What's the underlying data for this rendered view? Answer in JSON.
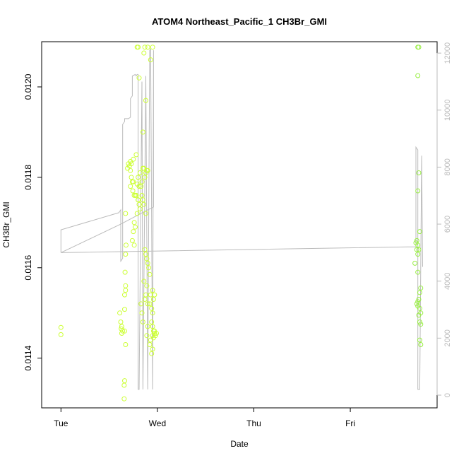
{
  "chart_data": {
    "type": "scatter",
    "title": "ATOM4 Northeast_Pacific_1 CH3Br_GMI",
    "xlabel": "Date",
    "ylabel": "CH3Br_GMI",
    "x_ticks": [
      {
        "label": "Tue",
        "value": 0
      },
      {
        "label": "Wed",
        "value": 1
      },
      {
        "label": "Thu",
        "value": 2
      },
      {
        "label": "Fri",
        "value": 3
      }
    ],
    "xlim": [
      -0.2,
      3.9
    ],
    "ylim": [
      0.01129,
      0.0121
    ],
    "y_ticks": [
      {
        "label": "0.0114",
        "value": 0.0114
      },
      {
        "label": "0.0116",
        "value": 0.0116
      },
      {
        "label": "0.0118",
        "value": 0.0118
      },
      {
        "label": "0.0120",
        "value": 0.012
      }
    ],
    "y2lim": [
      0,
      12400
    ],
    "y2_ticks": [
      {
        "label": "0",
        "value": 0
      },
      {
        "label": "2000",
        "value": 2000
      },
      {
        "label": "4000",
        "value": 4000
      },
      {
        "label": "6000",
        "value": 6000
      },
      {
        "label": "8000",
        "value": 8000
      },
      {
        "label": "10000",
        "value": 10000
      },
      {
        "label": "12000",
        "value": 12000
      }
    ],
    "grid": false,
    "colors": {
      "points": "#ccff33",
      "points_late": "#99ee44",
      "line": "#bbbbbb",
      "axis": "#000000",
      "axis_right": "#bbbbbb"
    },
    "series": [
      {
        "kind": "points",
        "points": [
          [
            0.0,
            0.011468
          ],
          [
            0.0,
            0.011452
          ],
          [
            0.61,
            0.0115
          ],
          [
            0.62,
            0.01148
          ],
          [
            0.63,
            0.01147
          ],
          [
            0.625,
            0.011465
          ],
          [
            0.64,
            0.01146
          ],
          [
            0.63,
            0.011455
          ],
          [
            0.66,
            0.01146
          ],
          [
            0.67,
            0.01143
          ],
          [
            0.66,
            0.011508
          ],
          [
            0.66,
            0.01154
          ],
          [
            0.67,
            0.01155
          ],
          [
            0.67,
            0.01156
          ],
          [
            0.665,
            0.01159
          ],
          [
            0.67,
            0.01163
          ],
          [
            0.675,
            0.01165
          ],
          [
            0.67,
            0.01172
          ],
          [
            0.66,
            0.01135
          ],
          [
            0.655,
            0.01134
          ],
          [
            0.655,
            0.01131
          ],
          [
            0.69,
            0.01182
          ],
          [
            0.7,
            0.01183
          ],
          [
            0.71,
            0.011825
          ],
          [
            0.72,
            0.011815
          ],
          [
            0.73,
            0.0118
          ],
          [
            0.74,
            0.01179
          ],
          [
            0.75,
            0.01179
          ],
          [
            0.72,
            0.01178
          ],
          [
            0.745,
            0.01177
          ],
          [
            0.76,
            0.01176
          ],
          [
            0.77,
            0.01176
          ],
          [
            0.78,
            0.01176
          ],
          [
            0.8,
            0.01175
          ],
          [
            0.81,
            0.01174
          ],
          [
            0.82,
            0.01173
          ],
          [
            0.79,
            0.01172
          ],
          [
            0.76,
            0.0117
          ],
          [
            0.77,
            0.01169
          ],
          [
            0.74,
            0.01166
          ],
          [
            0.76,
            0.01165
          ],
          [
            0.75,
            0.01168
          ],
          [
            0.8,
            0.01175
          ],
          [
            0.85,
            0.01175
          ],
          [
            0.86,
            0.01174
          ],
          [
            0.88,
            0.01172
          ],
          [
            0.83,
            0.01178
          ],
          [
            0.84,
            0.01179
          ],
          [
            0.87,
            0.0118
          ],
          [
            0.88,
            0.01181
          ],
          [
            0.89,
            0.011815
          ],
          [
            0.85,
            0.01182
          ],
          [
            0.86,
            0.01182
          ],
          [
            0.9,
            0.011815
          ],
          [
            0.75,
            0.01184
          ],
          [
            0.78,
            0.01185
          ],
          [
            0.72,
            0.011835
          ],
          [
            0.73,
            0.01183
          ],
          [
            0.8,
            0.0118
          ],
          [
            0.82,
            0.01181
          ],
          [
            0.84,
            0.01176
          ],
          [
            0.81,
            0.01178
          ],
          [
            0.79,
            0.011785
          ],
          [
            0.87,
            0.01164
          ],
          [
            0.88,
            0.01163
          ],
          [
            0.89,
            0.01162
          ],
          [
            0.9,
            0.01161
          ],
          [
            0.91,
            0.0116
          ],
          [
            0.92,
            0.011585
          ],
          [
            0.86,
            0.01157
          ],
          [
            0.89,
            0.01156
          ],
          [
            0.88,
            0.01154
          ],
          [
            0.87,
            0.01153
          ],
          [
            0.9,
            0.01152
          ],
          [
            0.93,
            0.01154
          ],
          [
            0.92,
            0.01152
          ],
          [
            0.94,
            0.01151
          ],
          [
            0.95,
            0.0115
          ],
          [
            0.94,
            0.01148
          ],
          [
            0.95,
            0.01147
          ],
          [
            0.96,
            0.01146
          ],
          [
            0.97,
            0.011455
          ],
          [
            0.95,
            0.01145
          ],
          [
            0.96,
            0.011445
          ],
          [
            0.98,
            0.01145
          ],
          [
            0.97,
            0.01146
          ],
          [
            0.99,
            0.011455
          ],
          [
            0.93,
            0.01144
          ],
          [
            0.92,
            0.01143
          ],
          [
            0.95,
            0.01142
          ],
          [
            0.94,
            0.01141
          ],
          [
            0.9,
            0.01147
          ],
          [
            0.89,
            0.01145
          ],
          [
            0.85,
            0.01148
          ],
          [
            0.84,
            0.0115
          ],
          [
            0.83,
            0.01152
          ],
          [
            0.96,
            0.01153
          ],
          [
            0.97,
            0.01154
          ],
          [
            0.95,
            0.01155
          ],
          [
            0.79,
            0.012088
          ],
          [
            0.8,
            0.012088
          ],
          [
            0.87,
            0.012088
          ],
          [
            0.9,
            0.012088
          ],
          [
            0.95,
            0.012088
          ],
          [
            0.86,
            0.012075
          ],
          [
            0.93,
            0.01206
          ],
          [
            0.81,
            0.01202
          ],
          [
            0.88,
            0.01197
          ],
          [
            0.85,
            0.0119
          ]
        ]
      },
      {
        "kind": "points_late",
        "points": [
          [
            3.7,
            0.012088
          ],
          [
            3.71,
            0.012088
          ],
          [
            3.7,
            0.012025
          ],
          [
            3.71,
            0.01181
          ],
          [
            3.7,
            0.01177
          ],
          [
            3.72,
            0.01168
          ],
          [
            3.69,
            0.01166
          ],
          [
            3.7,
            0.01165
          ],
          [
            3.68,
            0.011655
          ],
          [
            3.71,
            0.01164
          ],
          [
            3.7,
            0.01163
          ],
          [
            3.69,
            0.01164
          ],
          [
            3.67,
            0.01161
          ],
          [
            3.7,
            0.01159
          ],
          [
            3.73,
            0.011555
          ],
          [
            3.72,
            0.011545
          ],
          [
            3.71,
            0.01153
          ],
          [
            3.7,
            0.011525
          ],
          [
            3.69,
            0.01152
          ],
          [
            3.7,
            0.011515
          ],
          [
            3.72,
            0.01151
          ],
          [
            3.73,
            0.0115
          ],
          [
            3.71,
            0.011495
          ],
          [
            3.72,
            0.01148
          ],
          [
            3.73,
            0.011475
          ],
          [
            3.72,
            0.01144
          ],
          [
            3.73,
            0.01143
          ]
        ]
      },
      {
        "kind": "line",
        "axis": "right",
        "points": [
          [
            0.0,
            5000
          ],
          [
            0.0,
            5800
          ],
          [
            0.6,
            6400
          ],
          [
            0.62,
            6500
          ],
          [
            0.62,
            4700
          ],
          [
            0.64,
            4800
          ],
          [
            0.64,
            9500
          ],
          [
            0.66,
            9600
          ],
          [
            0.66,
            9700
          ],
          [
            0.7,
            9700
          ],
          [
            0.72,
            9750
          ],
          [
            0.72,
            10400
          ],
          [
            0.74,
            10500
          ],
          [
            0.74,
            11200
          ],
          [
            0.77,
            11250
          ],
          [
            0.78,
            11200
          ],
          [
            0.79,
            11250
          ],
          [
            0.8,
            11250
          ],
          [
            0.8,
            200
          ],
          [
            0.81,
            200
          ],
          [
            0.84,
            11000
          ],
          [
            0.85,
            200
          ],
          [
            0.88,
            11200
          ],
          [
            0.9,
            200
          ],
          [
            0.92,
            12100
          ],
          [
            0.93,
            12150
          ],
          [
            0.95,
            200
          ],
          [
            0.96,
            12100
          ],
          [
            0.96,
            6600
          ],
          [
            0.9,
            6500
          ],
          [
            0.62,
            6000
          ],
          [
            0.0,
            5000
          ],
          [
            3.6,
            5200
          ],
          [
            3.68,
            5200
          ],
          [
            3.68,
            8700
          ],
          [
            3.7,
            8600
          ],
          [
            3.7,
            200
          ],
          [
            3.72,
            200
          ],
          [
            3.74,
            8400
          ],
          [
            3.75,
            4500
          ]
        ]
      }
    ]
  }
}
